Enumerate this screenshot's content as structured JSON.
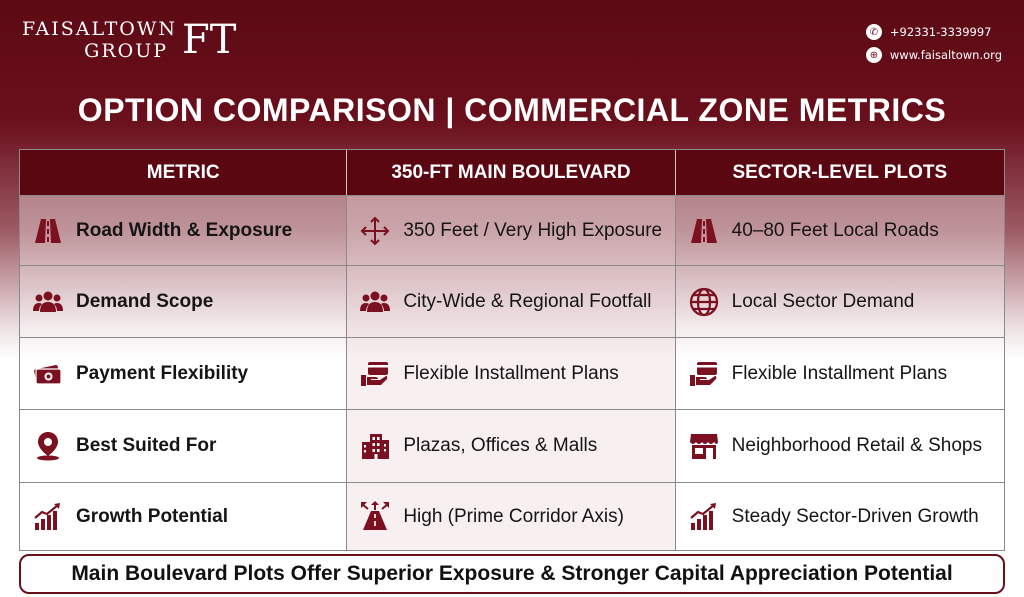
{
  "brand": {
    "line1": "FAISALTOWN",
    "line2": "GROUP",
    "mark": "FT"
  },
  "contact": {
    "phone": "+92331-3339997",
    "website": "www.faisaltown.org"
  },
  "title": "OPTION COMPARISON | COMMERCIAL ZONE METRICS",
  "table": {
    "headers": [
      "METRIC",
      "350-FT MAIN BOULEVARD",
      "SECTOR-LEVEL PLOTS"
    ],
    "rows": [
      {
        "metric": "Road Width & Exposure",
        "metric_icon": "road-icon",
        "boulevard": "350 Feet / Very High Exposure",
        "boulevard_icon": "expand-arrows-icon",
        "sector": "40–80 Feet Local Roads",
        "sector_icon": "road-icon"
      },
      {
        "metric": "Demand Scope",
        "metric_icon": "people-icon",
        "boulevard": "City-Wide & Regional Footfall",
        "boulevard_icon": "people-icon",
        "sector": "Local Sector Demand",
        "sector_icon": "globe-icon"
      },
      {
        "metric": "Payment Flexibility",
        "metric_icon": "cash-icon",
        "boulevard": "Flexible Installment Plans",
        "boulevard_icon": "card-hand-icon",
        "sector": "Flexible Installment Plans",
        "sector_icon": "card-hand-icon"
      },
      {
        "metric": "Best Suited For",
        "metric_icon": "location-pin-icon",
        "boulevard": "Plazas, Offices & Malls",
        "boulevard_icon": "building-icon",
        "sector": "Neighborhood Retail & Shops",
        "sector_icon": "shop-icon"
      },
      {
        "metric": "Growth Potential",
        "metric_icon": "growth-chart-icon",
        "boulevard": "High (Prime Corridor Axis)",
        "boulevard_icon": "corridor-arrows-icon",
        "sector": "Steady Sector-Driven Growth",
        "sector_icon": "growth-chart-icon"
      }
    ]
  },
  "footer": "Main Boulevard Plots Offer Superior Exposure & Stronger Capital Appreciation Potential",
  "colors": {
    "brand": "#5a0712",
    "accent": "#7a1020"
  }
}
